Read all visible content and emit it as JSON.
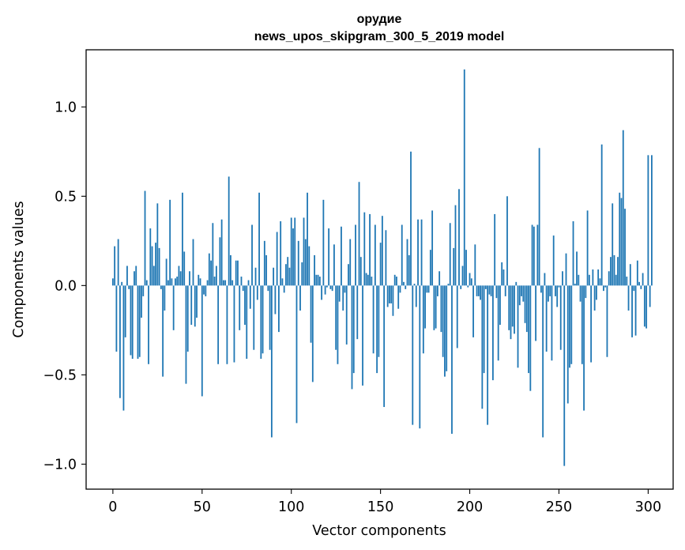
{
  "chart_data": {
    "type": "bar",
    "title": "орудие",
    "subtitle": "news_upos_skipgram_300_5_2019 model",
    "xlabel": "Vector components",
    "ylabel": "Components values",
    "xlim": [
      -15,
      314
    ],
    "ylim": [
      -1.14,
      1.32
    ],
    "xticks": [
      0,
      50,
      100,
      150,
      200,
      250,
      300
    ],
    "xtick_labels": [
      "0",
      "50",
      "100",
      "150",
      "200",
      "250",
      "300"
    ],
    "yticks": [
      -1.0,
      -0.5,
      0.0,
      0.5,
      1.0
    ],
    "ytick_labels": [
      "−1.0",
      "−0.5",
      "0.0",
      "0.5",
      "1.0"
    ],
    "bar_color": "#1f77b4",
    "series": [
      {
        "name": "components",
        "values": [
          0.04,
          0.22,
          -0.37,
          0.26,
          -0.63,
          0.02,
          -0.7,
          -0.29,
          0.11,
          -0.02,
          -0.39,
          -0.41,
          0.08,
          0.11,
          -0.41,
          -0.4,
          -0.18,
          -0.06,
          0.53,
          0.03,
          -0.44,
          0.32,
          0.22,
          0.11,
          0.24,
          0.46,
          0.21,
          -0.02,
          -0.51,
          -0.14,
          0.15,
          0.03,
          0.48,
          0.04,
          -0.25,
          0.04,
          0.05,
          0.11,
          0.08,
          0.52,
          0.19,
          -0.55,
          -0.37,
          0.08,
          -0.22,
          0.26,
          -0.23,
          -0.18,
          0.06,
          0.04,
          -0.62,
          -0.05,
          -0.06,
          0.03,
          0.18,
          0.14,
          0.35,
          0.05,
          0.11,
          -0.44,
          0.27,
          0.37,
          0.03,
          0.03,
          -0.44,
          0.61,
          0.17,
          0.03,
          -0.43,
          0.14,
          0.14,
          -0.25,
          0.05,
          -0.03,
          -0.22,
          -0.41,
          0.03,
          -0.13,
          0.34,
          -0.36,
          0.1,
          -0.08,
          0.52,
          -0.41,
          -0.38,
          0.25,
          0.17,
          -0.03,
          -0.36,
          -0.85,
          0.1,
          -0.16,
          0.3,
          -0.26,
          0.36,
          0.04,
          -0.04,
          0.12,
          0.16,
          0.1,
          0.38,
          0.32,
          0.38,
          -0.77,
          0.25,
          -0.14,
          0.13,
          0.38,
          0.26,
          0.52,
          0.22,
          -0.32,
          -0.54,
          0.17,
          0.06,
          0.06,
          0.05,
          -0.08,
          0.48,
          -0.05,
          -0.01,
          0.32,
          -0.02,
          -0.03,
          0.23,
          -0.36,
          -0.44,
          -0.09,
          0.33,
          -0.14,
          -0.04,
          -0.33,
          0.12,
          0.26,
          -0.58,
          -0.49,
          0.34,
          -0.3,
          0.58,
          0.16,
          -0.56,
          0.41,
          0.07,
          0.06,
          0.4,
          0.05,
          -0.38,
          0.34,
          -0.49,
          -0.4,
          0.24,
          0.39,
          -0.68,
          0.31,
          -0.12,
          -0.1,
          -0.1,
          -0.17,
          0.06,
          0.05,
          -0.13,
          -0.04,
          0.34,
          0.02,
          -0.02,
          0.26,
          0.17,
          0.75,
          -0.78,
          0.01,
          -0.12,
          0.37,
          -0.8,
          0.37,
          -0.38,
          -0.24,
          -0.04,
          -0.04,
          0.2,
          0.42,
          -0.25,
          -0.24,
          -0.06,
          0.08,
          -0.26,
          -0.4,
          -0.51,
          -0.48,
          0.01,
          0.35,
          -0.83,
          0.21,
          0.45,
          -0.35,
          0.54,
          -0.02,
          0.11,
          1.21,
          0.2,
          -0.01,
          0.07,
          0.04,
          -0.29,
          0.23,
          -0.06,
          -0.06,
          -0.08,
          -0.69,
          -0.49,
          -0.02,
          -0.78,
          -0.05,
          -0.06,
          -0.53,
          0.4,
          -0.07,
          -0.42,
          -0.22,
          0.13,
          0.09,
          -0.06,
          0.5,
          -0.25,
          -0.3,
          -0.23,
          -0.27,
          0.02,
          -0.46,
          -0.11,
          -0.06,
          -0.09,
          -0.21,
          -0.26,
          -0.49,
          -0.59,
          0.34,
          0.33,
          -0.31,
          0.34,
          0.77,
          -0.04,
          -0.85,
          0.07,
          -0.37,
          -0.09,
          -0.06,
          -0.42,
          0.28,
          -0.06,
          -0.12,
          -0.01,
          -0.36,
          0.08,
          -1.01,
          0.18,
          -0.66,
          -0.46,
          -0.44,
          0.36,
          0.01,
          0.19,
          0.06,
          -0.09,
          -0.44,
          -0.7,
          -0.07,
          0.42,
          0.06,
          -0.43,
          0.09,
          -0.14,
          -0.08,
          0.09,
          0.04,
          0.79,
          -0.03,
          -0.01,
          -0.4,
          0.08,
          0.16,
          0.46,
          0.17,
          0.06,
          0.16,
          0.52,
          0.49,
          0.87,
          0.43,
          0.05,
          -0.14,
          0.12,
          -0.29,
          -0.03,
          -0.28,
          0.14,
          0.02,
          -0.02,
          0.07,
          -0.23,
          -0.24,
          0.73,
          -0.12,
          0.73
        ]
      }
    ]
  }
}
